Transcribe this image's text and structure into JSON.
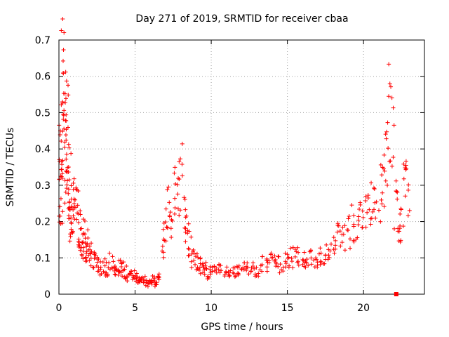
{
  "chart_data": {
    "type": "scatter",
    "title": "Day 271 of 2019, SRMTID for receiver cbaa",
    "xlabel": "GPS time / hours",
    "ylabel": "SRMTID / TECUs",
    "xlim": [
      0,
      24
    ],
    "ylim": [
      0,
      0.7
    ],
    "xticks": [
      0,
      5,
      10,
      15,
      20
    ],
    "yticks": [
      0,
      0.1,
      0.2,
      0.3,
      0.4,
      0.5,
      0.6,
      0.7
    ],
    "xtick_labels": [
      "0",
      "5",
      "10",
      "15",
      "20"
    ],
    "ytick_labels": [
      "0",
      "0.1",
      "0.2",
      "0.3",
      "0.4",
      "0.5",
      "0.6",
      "0.7"
    ],
    "grid": true,
    "marker": "+",
    "color": "#ff0000",
    "series": [
      {
        "name": "SRMTID",
        "x": [
          0.0,
          0.05,
          0.1,
          0.15,
          0.2,
          0.25,
          0.3,
          0.35,
          0.4,
          0.45,
          0.5,
          0.55,
          0.6,
          0.65,
          0.7,
          0.75,
          0.8,
          0.9,
          1.0,
          1.1,
          1.2,
          1.3,
          1.4,
          1.5,
          1.6,
          1.7,
          1.8,
          1.9,
          2.0,
          2.2,
          2.4,
          2.6,
          2.8,
          3.0,
          3.2,
          3.4,
          3.6,
          3.8,
          4.0,
          4.2,
          4.4,
          4.6,
          4.8,
          5.0,
          5.2,
          5.4,
          5.6,
          5.8,
          6.0,
          6.2,
          6.4,
          6.6,
          6.8,
          7.0,
          7.2,
          7.4,
          7.6,
          7.8,
          8.0,
          8.2,
          8.4,
          8.6,
          8.8,
          9.0,
          9.2,
          9.4,
          9.6,
          9.8,
          10.0,
          10.3,
          10.6,
          10.9,
          11.2,
          11.5,
          11.8,
          12.1,
          12.4,
          12.7,
          13.0,
          13.3,
          13.6,
          13.9,
          14.2,
          14.5,
          14.8,
          15.1,
          15.4,
          15.7,
          16.0,
          16.3,
          16.6,
          16.9,
          17.2,
          17.5,
          17.8,
          18.1,
          18.4,
          18.7,
          19.0,
          19.3,
          19.6,
          19.9,
          20.2,
          20.5,
          20.8,
          21.1,
          21.3,
          21.5,
          21.7,
          21.9,
          22.1,
          22.3,
          22.5,
          22.7,
          22.9
        ],
        "y": [
          0.36,
          0.44,
          0.3,
          0.22,
          0.35,
          0.6,
          0.65,
          0.55,
          0.52,
          0.3,
          0.47,
          0.4,
          0.28,
          0.32,
          0.2,
          0.25,
          0.22,
          0.3,
          0.26,
          0.28,
          0.22,
          0.18,
          0.15,
          0.14,
          0.16,
          0.12,
          0.14,
          0.12,
          0.11,
          0.09,
          0.1,
          0.08,
          0.07,
          0.08,
          0.07,
          0.09,
          0.07,
          0.06,
          0.08,
          0.07,
          0.06,
          0.05,
          0.05,
          0.05,
          0.04,
          0.04,
          0.04,
          0.03,
          0.03,
          0.04,
          0.03,
          0.05,
          0.14,
          0.2,
          0.25,
          0.22,
          0.28,
          0.3,
          0.33,
          0.22,
          0.18,
          0.14,
          0.1,
          0.09,
          0.08,
          0.07,
          0.07,
          0.06,
          0.06,
          0.06,
          0.07,
          0.06,
          0.05,
          0.06,
          0.06,
          0.07,
          0.07,
          0.08,
          0.07,
          0.08,
          0.08,
          0.09,
          0.09,
          0.08,
          0.09,
          0.1,
          0.1,
          0.11,
          0.1,
          0.09,
          0.1,
          0.09,
          0.1,
          0.11,
          0.12,
          0.13,
          0.15,
          0.16,
          0.18,
          0.2,
          0.18,
          0.22,
          0.21,
          0.24,
          0.25,
          0.28,
          0.3,
          0.4,
          0.52,
          0.45,
          0.25,
          0.15,
          0.2,
          0.3,
          0.3
        ]
      }
    ]
  }
}
